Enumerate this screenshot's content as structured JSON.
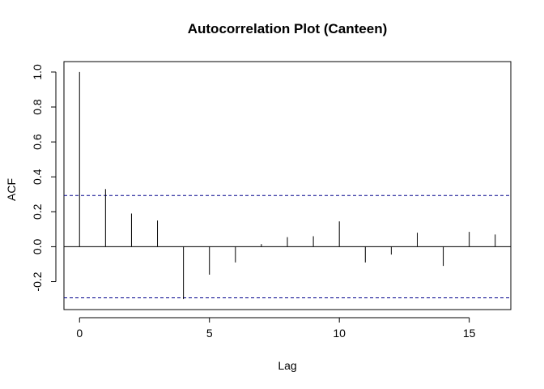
{
  "chart_data": {
    "type": "bar",
    "title": "Autocorrelation Plot (Canteen)",
    "xlabel": "Lag",
    "ylabel": "ACF",
    "x": [
      0,
      1,
      2,
      3,
      4,
      5,
      6,
      7,
      8,
      9,
      10,
      11,
      12,
      13,
      14,
      15,
      16
    ],
    "values": [
      1.0,
      0.33,
      0.19,
      0.15,
      -0.3,
      -0.16,
      -0.09,
      0.015,
      0.055,
      0.06,
      0.145,
      -0.09,
      -0.045,
      0.08,
      -0.11,
      0.085,
      0.07
    ],
    "xlim": [
      -0.6,
      16.6
    ],
    "ylim": [
      -0.36,
      1.06
    ],
    "x_ticks": [
      0,
      5,
      10,
      15
    ],
    "x_tick_labels": [
      "0",
      "5",
      "10",
      "15"
    ],
    "y_ticks": [
      -0.2,
      0.0,
      0.2,
      0.4,
      0.6,
      0.8,
      1.0
    ],
    "y_tick_labels": [
      "-0.2",
      "0.0",
      "0.2",
      "0.4",
      "0.6",
      "0.8",
      "1.0"
    ],
    "confidence_bounds": [
      0.293,
      -0.293
    ],
    "zero_line": 0,
    "grid": false,
    "colors": {
      "spike": "#000000",
      "confidence": "#00008B",
      "axis": "#000000"
    }
  }
}
